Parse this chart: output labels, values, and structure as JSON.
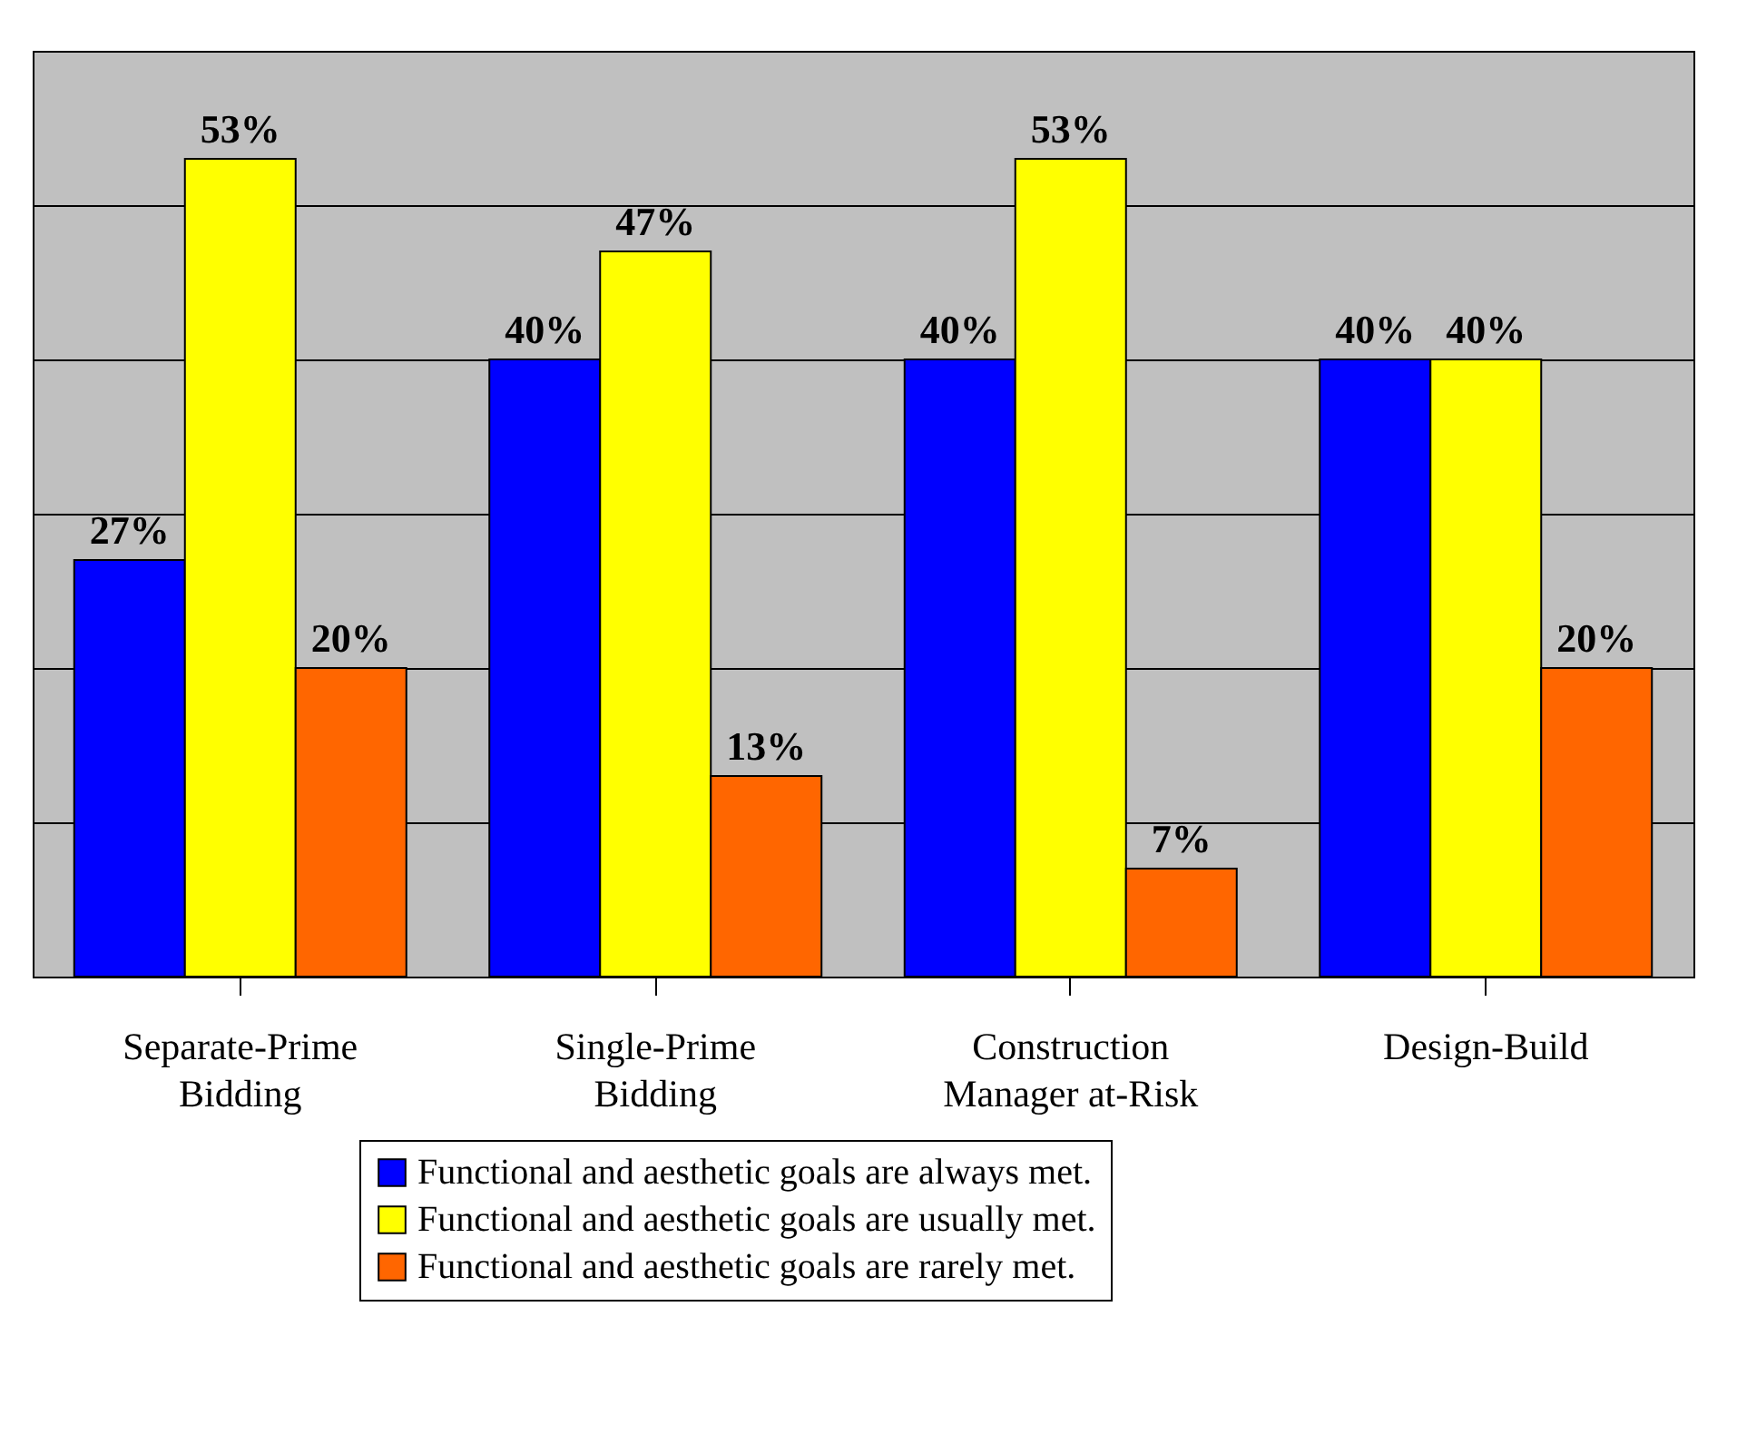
{
  "chart_data": {
    "type": "bar",
    "categories": [
      "Separate-Prime Bidding",
      "Single-Prime Bidding",
      "Construction Manager at-Risk",
      "Design-Build"
    ],
    "series": [
      {
        "name": "Functional and aesthetic goals are always met.",
        "color": "#0000ff",
        "values": [
          27,
          40,
          40,
          40
        ],
        "value_labels": [
          "27%",
          "40%",
          "40%",
          "40%"
        ]
      },
      {
        "name": "Functional and aesthetic goals are usually met.",
        "color": "#ffff00",
        "values": [
          53,
          47,
          53,
          40
        ],
        "value_labels": [
          "53%",
          "47%",
          "53%",
          "40%"
        ]
      },
      {
        "name": "Functional and aesthetic goals are rarely met.",
        "color": "#ff6600",
        "values": [
          20,
          13,
          7,
          20
        ],
        "value_labels": [
          "20%",
          "13%",
          "7%",
          "20%"
        ]
      }
    ],
    "ylim": [
      0,
      60
    ],
    "yticks": [
      {
        "value": 0,
        "label": null
      },
      {
        "value": 10,
        "label": null
      },
      {
        "value": 20,
        "label": null
      },
      {
        "value": 30,
        "label": null
      },
      {
        "value": 40,
        "label": null
      },
      {
        "value": 50,
        "label": null
      },
      {
        "value": 60,
        "label": null
      }
    ],
    "grid": "y",
    "legend": "bottom",
    "tick_labels": "x"
  }
}
